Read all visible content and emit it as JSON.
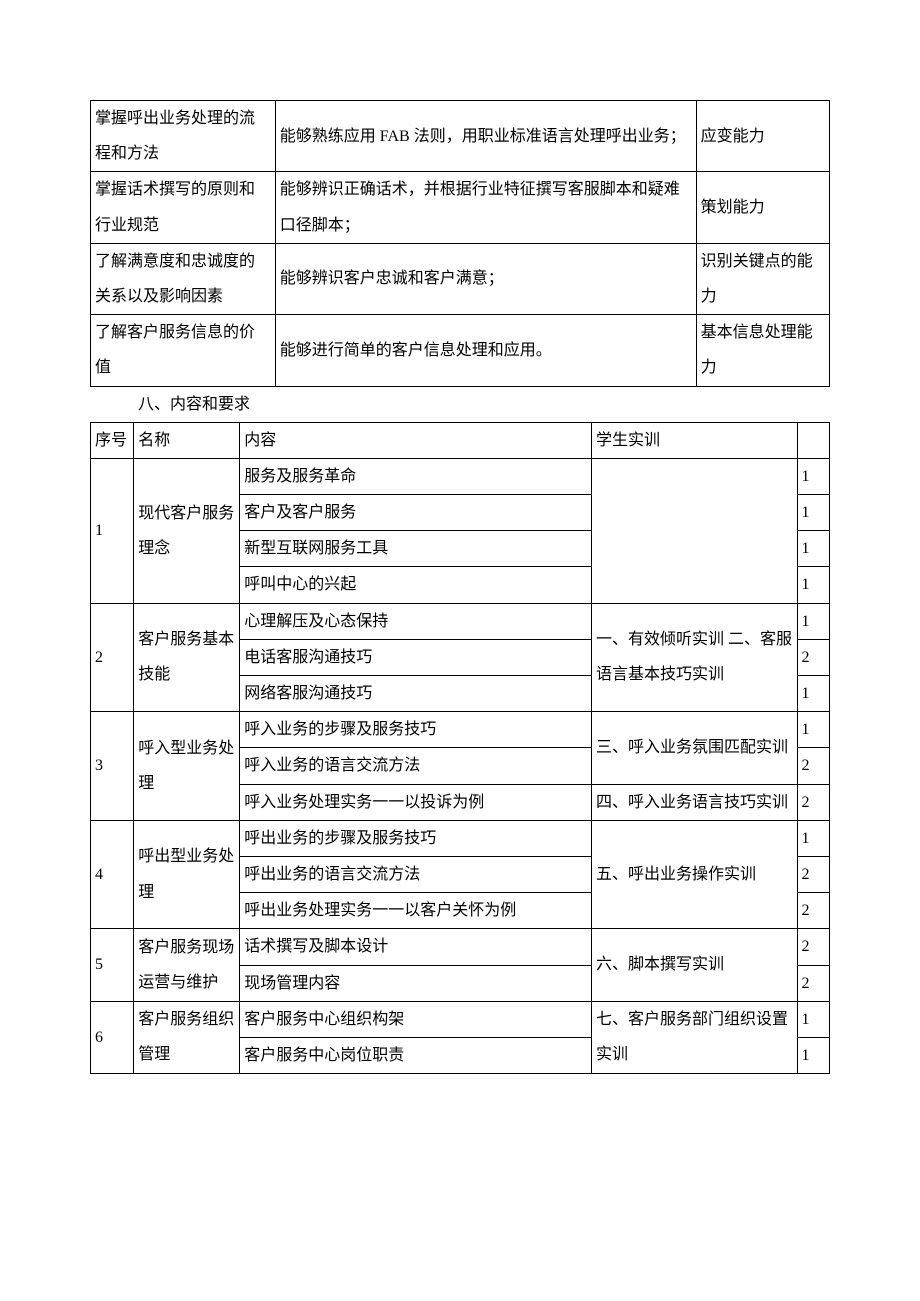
{
  "table1": {
    "rows": [
      {
        "c1": "掌握呼出业务处理的流程和方法",
        "c2": "能够熟练应用 FAB 法则，用职业标准语言处理呼出业务；",
        "c3": "应变能力"
      },
      {
        "c1": "掌握话术撰写的原则和行业规范",
        "c2": "能够辨识正确话术，并根据行业特征撰写客服脚本和疑难口径脚本；",
        "c3": "策划能力"
      },
      {
        "c1": "了解满意度和忠诚度的关系以及影响因素",
        "c2": "能够辨识客户忠诚和客户满意；",
        "c3": "识别关键点的能力"
      },
      {
        "c1": "了解客户服务信息的价值",
        "c2": "能够进行简单的客户信息处理和应用。",
        "c3": "基本信息处理能力"
      }
    ]
  },
  "section_title": "八、内容和要求",
  "table2": {
    "headers": {
      "c1": "序号",
      "c2": "名称",
      "c3": "内容",
      "c4": "学生实训",
      "c5": ""
    },
    "groups": [
      {
        "no": "1",
        "name": "现代客户服务理念",
        "items": [
          {
            "content": "服务及服务革命",
            "n": "1"
          },
          {
            "content": "客户及客户服务",
            "n": "1"
          },
          {
            "content": "新型互联网服务工具",
            "n": "1"
          },
          {
            "content": "呼叫中心的兴起",
            "n": "1"
          }
        ],
        "practice": ""
      },
      {
        "no": "2",
        "name": "客户服务基本技能",
        "items": [
          {
            "content": "心理解压及心态保持",
            "n": "1"
          },
          {
            "content": "电话客服沟通技巧",
            "n": "2"
          },
          {
            "content": "网络客服沟通技巧",
            "n": "1"
          }
        ],
        "practice": "一、有效倾听实训 二、客服语言基本技巧实训"
      },
      {
        "no": "3",
        "name": "呼入型业务处理",
        "items": [
          {
            "content": "呼入业务的步骤及服务技巧",
            "n": "1"
          },
          {
            "content": "呼入业务的语言交流方法",
            "n": "2"
          },
          {
            "content": "呼入业务处理实务一一以投诉为例",
            "n": "2"
          }
        ],
        "practice_a": "三、呼入业务氛围匹配实训",
        "practice_b": "四、呼入业务语言技巧实训"
      },
      {
        "no": "4",
        "name": "呼出型业务处理",
        "items": [
          {
            "content": "呼出业务的步骤及服务技巧",
            "n": "1"
          },
          {
            "content": "呼出业务的语言交流方法",
            "n": "2"
          },
          {
            "content": "呼出业务处理实务一一以客户关怀为例",
            "n": "2"
          }
        ],
        "practice": "五、呼出业务操作实训"
      },
      {
        "no": "5",
        "name": "客户服务现场运营与维护",
        "items": [
          {
            "content": "话术撰写及脚本设计",
            "n": "2"
          },
          {
            "content": "现场管理内容",
            "n": "2"
          }
        ],
        "practice": "六、脚本撰写实训"
      },
      {
        "no": "6",
        "name": "客户服务组织管理",
        "items": [
          {
            "content": "客户服务中心组织构架",
            "n": "1"
          },
          {
            "content": "客户服务中心岗位职责",
            "n": "1"
          }
        ],
        "practice": "七、客户服务部门组织设置实训"
      }
    ]
  }
}
